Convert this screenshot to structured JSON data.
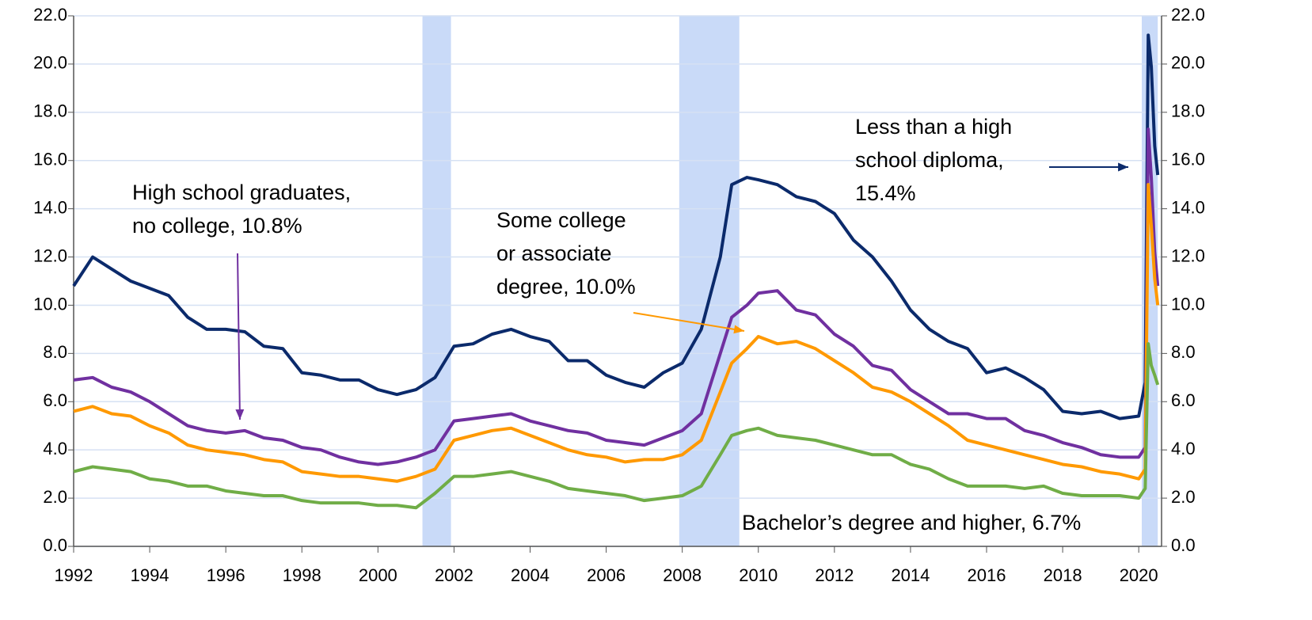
{
  "chart_data": {
    "type": "line",
    "x": [
      1992,
      1992.5,
      1993,
      1993.5,
      1994,
      1994.5,
      1995,
      1995.5,
      1996,
      1996.5,
      1997,
      1997.5,
      1998,
      1998.5,
      1999,
      1999.5,
      2000,
      2000.5,
      2001,
      2001.5,
      2002,
      2002.5,
      2003,
      2003.5,
      2004,
      2004.5,
      2005,
      2005.5,
      2006,
      2006.5,
      2007,
      2007.5,
      2008,
      2008.5,
      2009,
      2009.3,
      2009.7,
      2010,
      2010.5,
      2011,
      2011.5,
      2012,
      2012.5,
      2013,
      2013.5,
      2014,
      2014.5,
      2015,
      2015.5,
      2016,
      2016.5,
      2017,
      2017.5,
      2018,
      2018.5,
      2019,
      2019.5,
      2020,
      2020.17,
      2020.25,
      2020.33,
      2020.42,
      2020.5
    ],
    "series": [
      {
        "color": "#0b2a6b",
        "values": [
          10.8,
          12.0,
          11.5,
          11.0,
          10.7,
          10.4,
          9.5,
          9.0,
          9.0,
          8.9,
          8.3,
          8.2,
          7.2,
          7.1,
          6.9,
          6.9,
          6.5,
          6.3,
          6.5,
          7.0,
          8.3,
          8.4,
          8.8,
          9.0,
          8.7,
          8.5,
          7.7,
          7.7,
          7.1,
          6.8,
          6.6,
          7.2,
          7.6,
          9.0,
          12.0,
          15.0,
          15.3,
          15.2,
          15.0,
          14.5,
          14.3,
          13.8,
          12.7,
          12.0,
          11.0,
          9.8,
          9.0,
          8.5,
          8.2,
          7.2,
          7.4,
          7.0,
          6.5,
          5.6,
          5.5,
          5.6,
          5.3,
          5.4,
          6.8,
          21.2,
          19.9,
          16.6,
          15.4
        ]
      },
      {
        "color": "#7030a0",
        "values": [
          6.9,
          7.0,
          6.6,
          6.4,
          6.0,
          5.5,
          5.0,
          4.8,
          4.7,
          4.8,
          4.5,
          4.4,
          4.1,
          4.0,
          3.7,
          3.5,
          3.4,
          3.5,
          3.7,
          4.0,
          5.2,
          5.3,
          5.4,
          5.5,
          5.2,
          5.0,
          4.8,
          4.7,
          4.4,
          4.3,
          4.2,
          4.5,
          4.8,
          5.5,
          8.0,
          9.5,
          10.0,
          10.5,
          10.6,
          9.8,
          9.6,
          8.8,
          8.3,
          7.5,
          7.3,
          6.5,
          6.0,
          5.5,
          5.5,
          5.3,
          5.3,
          4.8,
          4.6,
          4.3,
          4.1,
          3.8,
          3.7,
          3.7,
          4.1,
          17.3,
          15.3,
          12.2,
          10.8
        ]
      },
      {
        "color": "#ff9900",
        "values": [
          5.6,
          5.8,
          5.5,
          5.4,
          5.0,
          4.7,
          4.2,
          4.0,
          3.9,
          3.8,
          3.6,
          3.5,
          3.1,
          3.0,
          2.9,
          2.9,
          2.8,
          2.7,
          2.9,
          3.2,
          4.4,
          4.6,
          4.8,
          4.9,
          4.6,
          4.3,
          4.0,
          3.8,
          3.7,
          3.5,
          3.6,
          3.6,
          3.8,
          4.4,
          6.4,
          7.6,
          8.2,
          8.7,
          8.4,
          8.5,
          8.2,
          7.7,
          7.2,
          6.6,
          6.4,
          6.0,
          5.5,
          5.0,
          4.4,
          4.2,
          4.0,
          3.8,
          3.6,
          3.4,
          3.3,
          3.1,
          3.0,
          2.8,
          3.2,
          15.0,
          13.3,
          11.1,
          10.0
        ]
      },
      {
        "color": "#70ad47",
        "values": [
          3.1,
          3.3,
          3.2,
          3.1,
          2.8,
          2.7,
          2.5,
          2.5,
          2.3,
          2.2,
          2.1,
          2.1,
          1.9,
          1.8,
          1.8,
          1.8,
          1.7,
          1.7,
          1.6,
          2.2,
          2.9,
          2.9,
          3.0,
          3.1,
          2.9,
          2.7,
          2.4,
          2.3,
          2.2,
          2.1,
          1.9,
          2.0,
          2.1,
          2.5,
          3.8,
          4.6,
          4.8,
          4.9,
          4.6,
          4.5,
          4.4,
          4.2,
          4.0,
          3.8,
          3.8,
          3.4,
          3.2,
          2.8,
          2.5,
          2.5,
          2.5,
          2.4,
          2.5,
          2.2,
          2.1,
          2.1,
          2.1,
          2.0,
          2.4,
          8.4,
          7.5,
          7.1,
          6.7
        ]
      }
    ],
    "shaded_periods": [
      [
        2001.17,
        2001.92
      ],
      [
        2007.92,
        2009.5
      ],
      [
        2020.08,
        2020.5
      ]
    ],
    "shade_color": "#c9daf8",
    "xlim": [
      1992,
      2020.6
    ],
    "xticks": [
      1992,
      1994,
      1996,
      1998,
      2000,
      2002,
      2004,
      2006,
      2008,
      2010,
      2012,
      2014,
      2016,
      2018,
      2020
    ],
    "ylim": [
      0,
      22
    ],
    "yticks": [
      {
        "value": 0,
        "label": "0.0"
      },
      {
        "value": 2,
        "label": "2.0"
      },
      {
        "value": 4,
        "label": "4.0"
      },
      {
        "value": 6,
        "label": "6.0"
      },
      {
        "value": 8,
        "label": "8.0"
      },
      {
        "value": 10,
        "label": "10.0"
      },
      {
        "value": 12,
        "label": "12.0"
      },
      {
        "value": 14,
        "label": "14.0"
      },
      {
        "value": 16,
        "label": "16.0"
      },
      {
        "value": 18,
        "label": "18.0"
      },
      {
        "value": 20,
        "label": "20.0"
      },
      {
        "value": 22,
        "label": "22.0"
      }
    ],
    "y2lim": [
      0,
      22
    ],
    "y2ticks": [
      {
        "value": 0,
        "label": "0.0"
      },
      {
        "value": 2,
        "label": "2.0"
      },
      {
        "value": 4,
        "label": "4.0"
      },
      {
        "value": 6,
        "label": "6.0"
      },
      {
        "value": 8,
        "label": "8.0"
      },
      {
        "value": 10,
        "label": "10.0"
      },
      {
        "value": 12,
        "label": "12.0"
      },
      {
        "value": 14,
        "label": "14.0"
      },
      {
        "value": 16,
        "label": "16.0"
      },
      {
        "value": 18,
        "label": "18.0"
      },
      {
        "value": 20,
        "label": "20.0"
      },
      {
        "value": 22,
        "label": "22.0"
      }
    ],
    "grid": true,
    "annotations": [
      {
        "lines": [
          "High school graduates,",
          "no college, 10.8%"
        ],
        "color": "#7030a0"
      },
      {
        "lines": [
          "Some college",
          "or associate",
          "degree, 10.0%"
        ],
        "color": "#ff9900"
      },
      {
        "lines": [
          "Less than a high",
          "school diploma,",
          "15.4%"
        ],
        "color": "#0b2a6b"
      },
      {
        "lines": [
          "Bachelor’s degree and higher, 6.7%"
        ],
        "color": "#70ad47"
      }
    ]
  }
}
